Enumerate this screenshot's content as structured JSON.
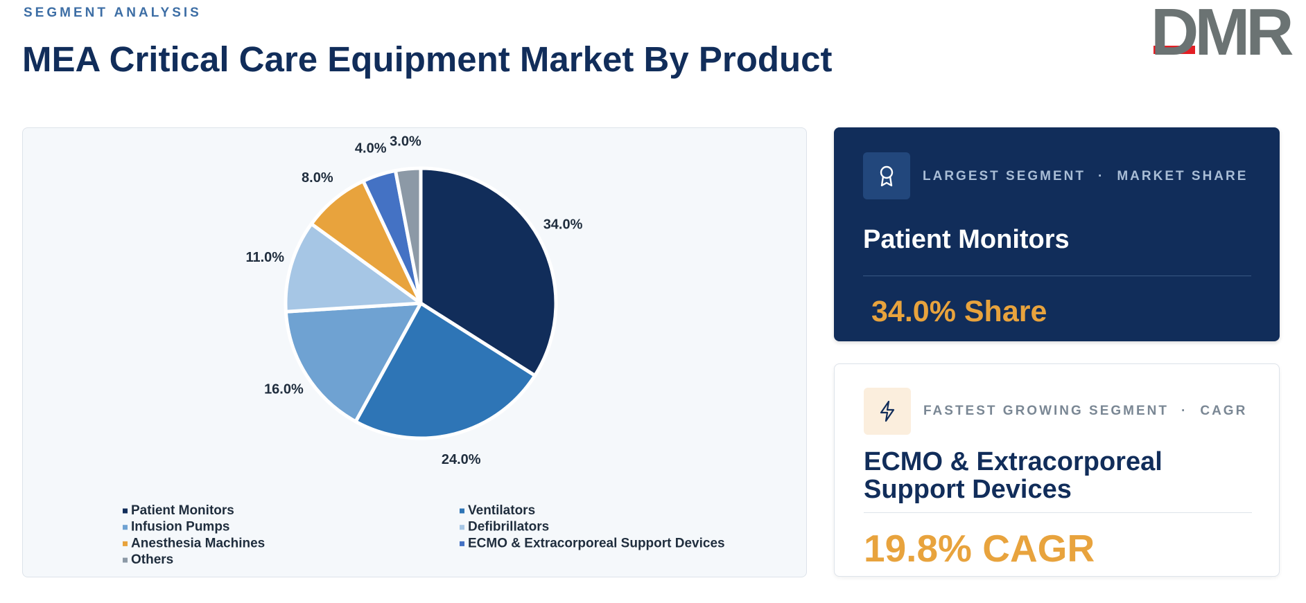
{
  "header": {
    "eyebrow": "SEGMENT ANALYSIS",
    "title": "MEA Critical Care Equipment Market By Product",
    "logo": "DMR"
  },
  "chart_data": {
    "type": "pie",
    "categories": [
      "Patient Monitors",
      "Ventilators",
      "Infusion Pumps",
      "Defibrillators",
      "Anesthesia Machines",
      "ECMO & Extracorporeal Support Devices",
      "Others"
    ],
    "values": [
      34,
      24,
      16,
      11,
      8,
      4,
      3
    ],
    "value_labels": [
      "34.0%",
      "24.0%",
      "16.0%",
      "11.0%",
      "8.0%",
      "4.0%",
      "3.0%"
    ],
    "colors": [
      "#112d5a",
      "#2e75b6",
      "#6fa2d2",
      "#a6c6e5",
      "#e8a33d",
      "#4472c4",
      "#8c99a6"
    ]
  },
  "cards": {
    "largest": {
      "label": "LARGEST SEGMENT",
      "metric": "MARKET SHARE",
      "name": "Patient Monitors",
      "value": "34.0% Share"
    },
    "fastest": {
      "label": "FASTEST GROWING SEGMENT",
      "metric": "CAGR",
      "name": "ECMO & Extracorporeal Support Devices",
      "value": "19.8% CAGR"
    }
  }
}
